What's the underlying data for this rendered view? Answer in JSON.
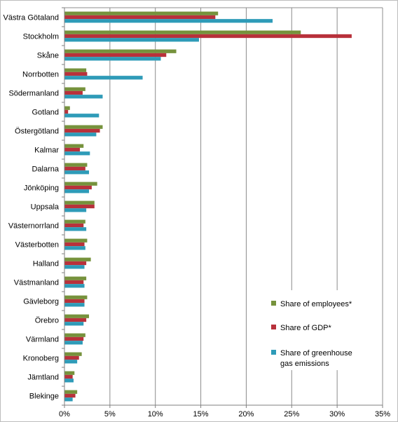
{
  "chart_data": {
    "type": "bar",
    "orientation": "horizontal",
    "title": "",
    "xlabel": "",
    "ylabel": "",
    "xlim": [
      0,
      35
    ],
    "x_ticks": [
      0,
      5,
      10,
      15,
      20,
      25,
      30,
      35
    ],
    "x_tick_labels": [
      "0%",
      "5%",
      "10%",
      "15%",
      "20%",
      "25%",
      "30%",
      "35%"
    ],
    "grid": "vertical",
    "legend_position": "bottom-right",
    "categories": [
      "Västra Götaland",
      "Stockholm",
      "Skåne",
      "Norrbotten",
      "Södermanland",
      "Gotland",
      "Östergötland",
      "Kalmar",
      "Dalarna",
      "Jönköping",
      "Uppsala",
      "Västernorrland",
      "Västerbotten",
      "Halland",
      "Västmanland",
      "Gävleborg",
      "Örebro",
      "Värmland",
      "Kronoberg",
      "Jämtland",
      "Blekinge"
    ],
    "series": [
      {
        "name": "Share of employees*",
        "color": "#76923c",
        "values": [
          16.9,
          26.0,
          12.3,
          2.4,
          2.3,
          0.6,
          4.2,
          2.1,
          2.5,
          3.6,
          3.3,
          2.3,
          2.5,
          2.9,
          2.4,
          2.5,
          2.7,
          2.3,
          1.9,
          1.1,
          1.4
        ]
      },
      {
        "name": "Share of GDP*",
        "color": "#b8313b",
        "values": [
          16.6,
          31.6,
          11.2,
          2.5,
          2.0,
          0.4,
          3.9,
          1.7,
          2.3,
          3.0,
          3.3,
          2.1,
          2.2,
          2.4,
          2.1,
          2.2,
          2.4,
          2.1,
          1.6,
          0.9,
          1.2
        ]
      },
      {
        "name": "Share of greenhouse gas emissions",
        "color": "#2e9bb8",
        "values": [
          22.9,
          14.8,
          10.6,
          8.6,
          4.2,
          3.8,
          3.5,
          2.8,
          2.7,
          2.7,
          2.4,
          2.4,
          2.3,
          2.2,
          2.2,
          2.2,
          2.1,
          2.0,
          1.4,
          1.0,
          0.9
        ]
      }
    ],
    "legend_labels": [
      [
        "Share of employees*"
      ],
      [
        "Share of GDP*"
      ],
      [
        "Share of greenhouse",
        "gas emissions"
      ]
    ]
  }
}
